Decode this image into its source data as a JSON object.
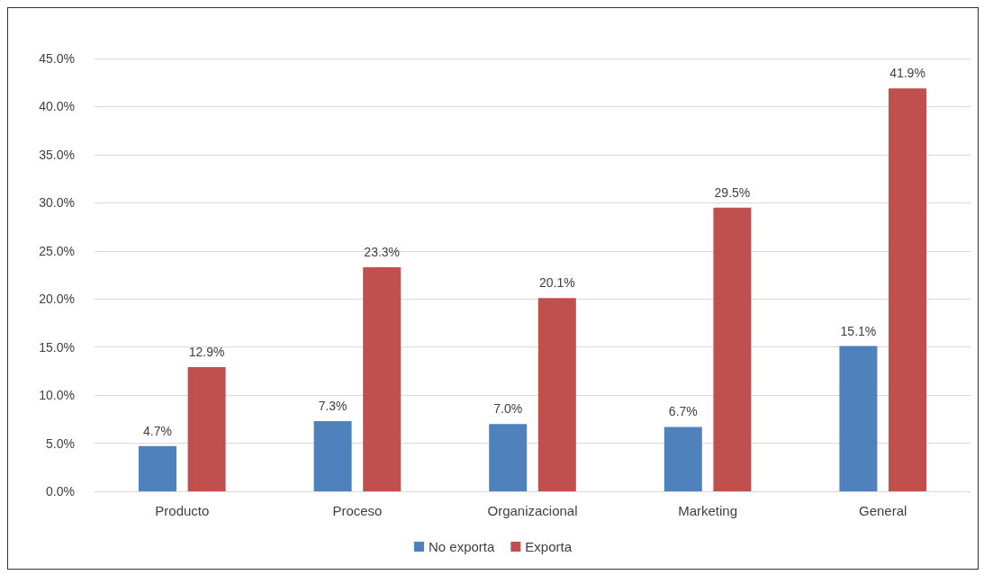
{
  "chart_data": {
    "type": "bar",
    "categories": [
      "Producto",
      "Proceso",
      "Organizacional",
      "Marketing",
      "General"
    ],
    "series": [
      {
        "name": "No exporta",
        "color": "#4f81bd",
        "values": [
          4.7,
          7.3,
          7.0,
          6.7,
          15.1
        ],
        "value_labels": [
          "4.7%",
          "7.3%",
          "7.0%",
          "6.7%",
          "15.1%"
        ]
      },
      {
        "name": "Exporta",
        "color": "#c0504d",
        "values": [
          12.9,
          23.3,
          20.1,
          29.5,
          41.9
        ],
        "value_labels": [
          "12.9%",
          "23.3%",
          "20.1%",
          "29.5%",
          "41.9%"
        ]
      }
    ],
    "ylim": [
      0,
      45
    ],
    "yticks": [
      {
        "value": 0,
        "label": "0.0%"
      },
      {
        "value": 5,
        "label": "5.0%"
      },
      {
        "value": 10,
        "label": "10.0%"
      },
      {
        "value": 15,
        "label": "15.0%"
      },
      {
        "value": 20,
        "label": "20.0%"
      },
      {
        "value": 25,
        "label": "25.0%"
      },
      {
        "value": 30,
        "label": "30.0%"
      },
      {
        "value": 35,
        "label": "35.0%"
      },
      {
        "value": 40,
        "label": "40.0%"
      },
      {
        "value": 45,
        "label": "45.0%"
      }
    ],
    "grid": "y",
    "legend": "bottom"
  }
}
